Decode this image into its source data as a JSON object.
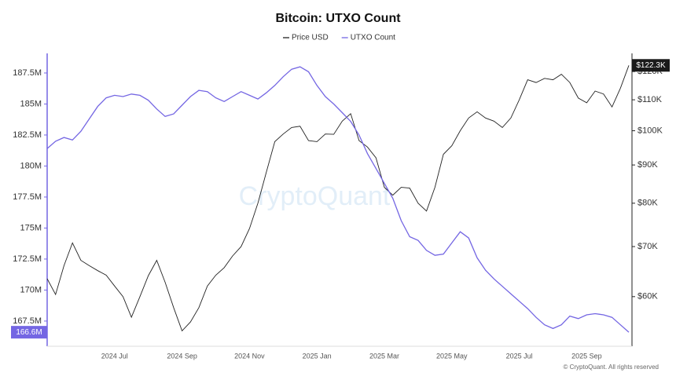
{
  "chart_data": {
    "type": "line",
    "title": "Bitcoin: UTXO Count",
    "categories": [
      null,
      null,
      null,
      null,
      null,
      null,
      null,
      null,
      "2024 Jul",
      null,
      null,
      null,
      null,
      null,
      null,
      null,
      "2024 Sep",
      null,
      null,
      null,
      null,
      null,
      null,
      null,
      "2024 Nov",
      null,
      null,
      null,
      null,
      null,
      null,
      null,
      "2025 Jan",
      null,
      null,
      null,
      null,
      null,
      null,
      null,
      "2025 Mar",
      null,
      null,
      null,
      null,
      null,
      null,
      null,
      "2025 May",
      null,
      null,
      null,
      null,
      null,
      null,
      null,
      "2025 Jul",
      null,
      null,
      null,
      null,
      null,
      null,
      null,
      "2025 Sep",
      null,
      null,
      null,
      null,
      null
    ],
    "series": [
      {
        "name": "Price USD",
        "color": "#222222",
        "axis": "y2",
        "last_label": "$122.3K",
        "values": [
          63400,
          60400,
          66000,
          70800,
          67100,
          66000,
          65000,
          64100,
          62000,
          60000,
          56300,
          60000,
          64000,
          67100,
          62700,
          58000,
          54000,
          55500,
          58000,
          62000,
          64100,
          65600,
          68000,
          70000,
          74000,
          80000,
          88000,
          96700,
          99000,
          101000,
          101400,
          97000,
          96700,
          99000,
          98900,
          103000,
          105400,
          97000,
          95100,
          92000,
          84000,
          82000,
          84000,
          83800,
          80000,
          78100,
          84000,
          93000,
          95500,
          100000,
          104000,
          106000,
          104000,
          103000,
          101000,
          104000,
          110000,
          117000,
          116000,
          117500,
          117000,
          119000,
          116000,
          110600,
          109000,
          113000,
          112000,
          107600,
          114000,
          122300
        ]
      },
      {
        "name": "UTXO Count",
        "color": "#7466e3",
        "last_label": "166.6M",
        "values": [
          181400000,
          182000000,
          182300000,
          182100000,
          182800000,
          183800000,
          184800000,
          185500000,
          185700000,
          185600000,
          185800000,
          185700000,
          185300000,
          184600000,
          184000000,
          184200000,
          184900000,
          185600000,
          186100000,
          186000000,
          185500000,
          185200000,
          185600000,
          186000000,
          185700000,
          185400000,
          185900000,
          186500000,
          187200000,
          187800000,
          188000000,
          187600000,
          186500000,
          185600000,
          185000000,
          184300000,
          183600000,
          182500000,
          181000000,
          179800000,
          178600000,
          177400000,
          175600000,
          174300000,
          174000000,
          173200000,
          172800000,
          172900000,
          173800000,
          174700000,
          174200000,
          172600000,
          171600000,
          170900000,
          170300000,
          169700000,
          169100000,
          168500000,
          167800000,
          167200000,
          166900000,
          167200000,
          167900000,
          167700000,
          168000000,
          168100000,
          168000000,
          167800000,
          167200000,
          166600000
        ]
      }
    ],
    "ylim": [
      165470000,
      189080000
    ],
    "yticks": [
      {
        "value": 167500000,
        "label": "167.5M"
      },
      {
        "value": 170000000,
        "label": "170M"
      },
      {
        "value": 172500000,
        "label": "172.5M"
      },
      {
        "value": 175000000,
        "label": "175M"
      },
      {
        "value": 177500000,
        "label": "177.5M"
      },
      {
        "value": 180000000,
        "label": "180M"
      },
      {
        "value": 182500000,
        "label": "182.5M"
      },
      {
        "value": 185000000,
        "label": "185M"
      },
      {
        "value": 187500000,
        "label": "187.5M"
      }
    ],
    "y2lim": [
      51500,
      126900
    ],
    "y2log": true,
    "y2ticks": [
      {
        "value": 60000,
        "label": "$60K"
      },
      {
        "value": 70000,
        "label": "$70K"
      },
      {
        "value": 80000,
        "label": "$80K"
      },
      {
        "value": 90000,
        "label": "$90K"
      },
      {
        "value": 100000,
        "label": "$100K"
      },
      {
        "value": 110000,
        "label": "$110K"
      },
      {
        "value": 120000,
        "label": "$120K"
      }
    ],
    "watermark": "CryptoQuant",
    "footer": "© CryptoQuant. All rights reserved"
  }
}
